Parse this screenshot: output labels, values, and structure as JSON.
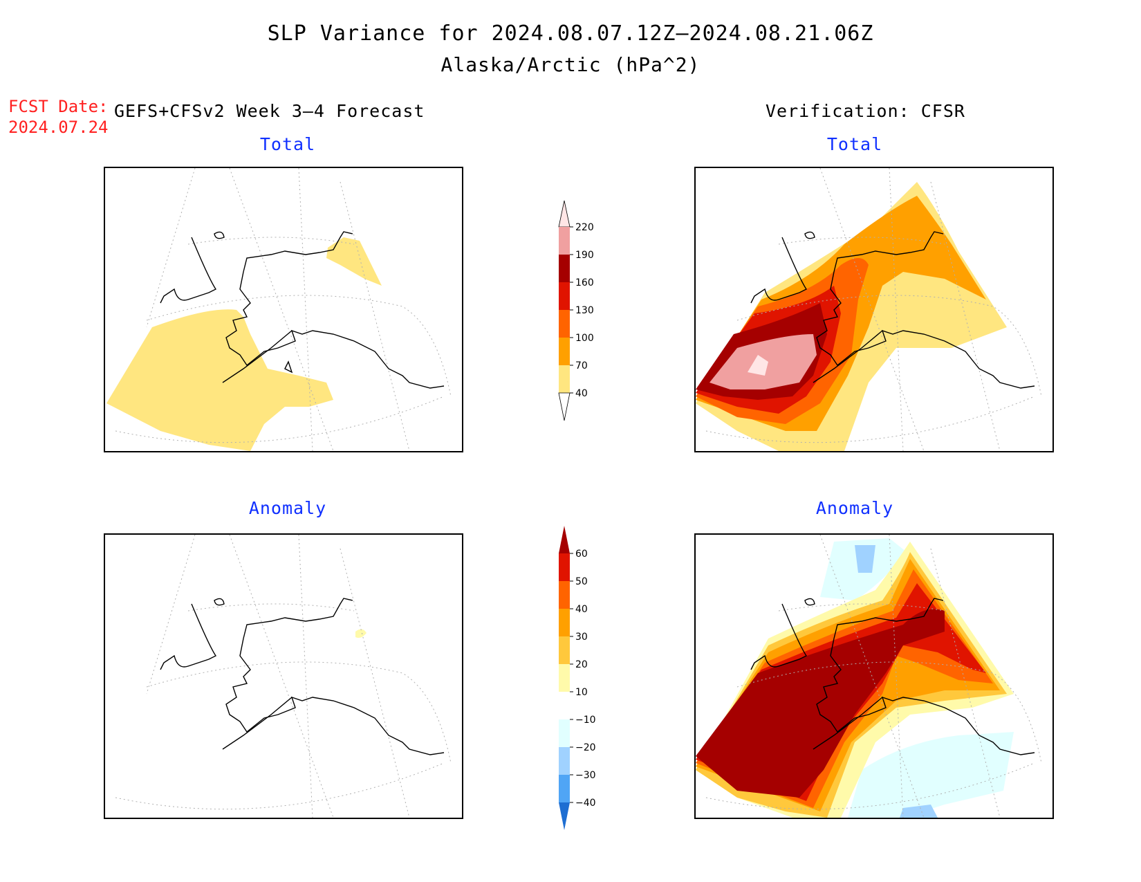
{
  "title": "SLP Variance for 2024.08.07.12Z–2024.08.21.06Z",
  "subtitle": "Alaska/Arctic (hPa^2)",
  "forecast_date_label": "FCST Date:",
  "forecast_date": "2024.07.24",
  "left_column_heading": "GEFS+CFSv2 Week 3–4 Forecast",
  "right_column_heading": "Verification: CFSR",
  "panels": {
    "forecast_total": {
      "title": "Total"
    },
    "verification_total": {
      "title": "Total"
    },
    "forecast_anomaly": {
      "title": "Anomaly"
    },
    "verification_anomaly": {
      "title": "Anomaly"
    }
  },
  "colorbars": {
    "total": {
      "tick_labels": [
        "220",
        "190",
        "160",
        "130",
        "100",
        "70",
        "40"
      ],
      "levels": [
        40,
        70,
        100,
        130,
        160,
        190,
        220
      ],
      "colors": [
        "#ffe680",
        "#ffa000",
        "#ff6400",
        "#e01400",
        "#a50000",
        "#f0a0a0",
        "#ffe6e6"
      ]
    },
    "anomaly": {
      "tick_labels": [
        "60",
        "50",
        "40",
        "30",
        "20",
        "10",
        "−10",
        "−20",
        "−30",
        "−40"
      ],
      "levels": [
        -40,
        -30,
        -20,
        -10,
        10,
        20,
        30,
        40,
        50,
        60
      ],
      "colors_above": [
        "#fffaaa",
        "#ffc83c",
        "#ffa000",
        "#ff6400",
        "#e01400",
        "#a50000"
      ],
      "colors_below": [
        "#e1ffff",
        "#a0d2ff",
        "#50a5f5",
        "#1e6ed2"
      ]
    }
  },
  "colors": {
    "title_text": "#000000",
    "panel_title": "#1030ff",
    "forecast_date": "#ff2020"
  }
}
